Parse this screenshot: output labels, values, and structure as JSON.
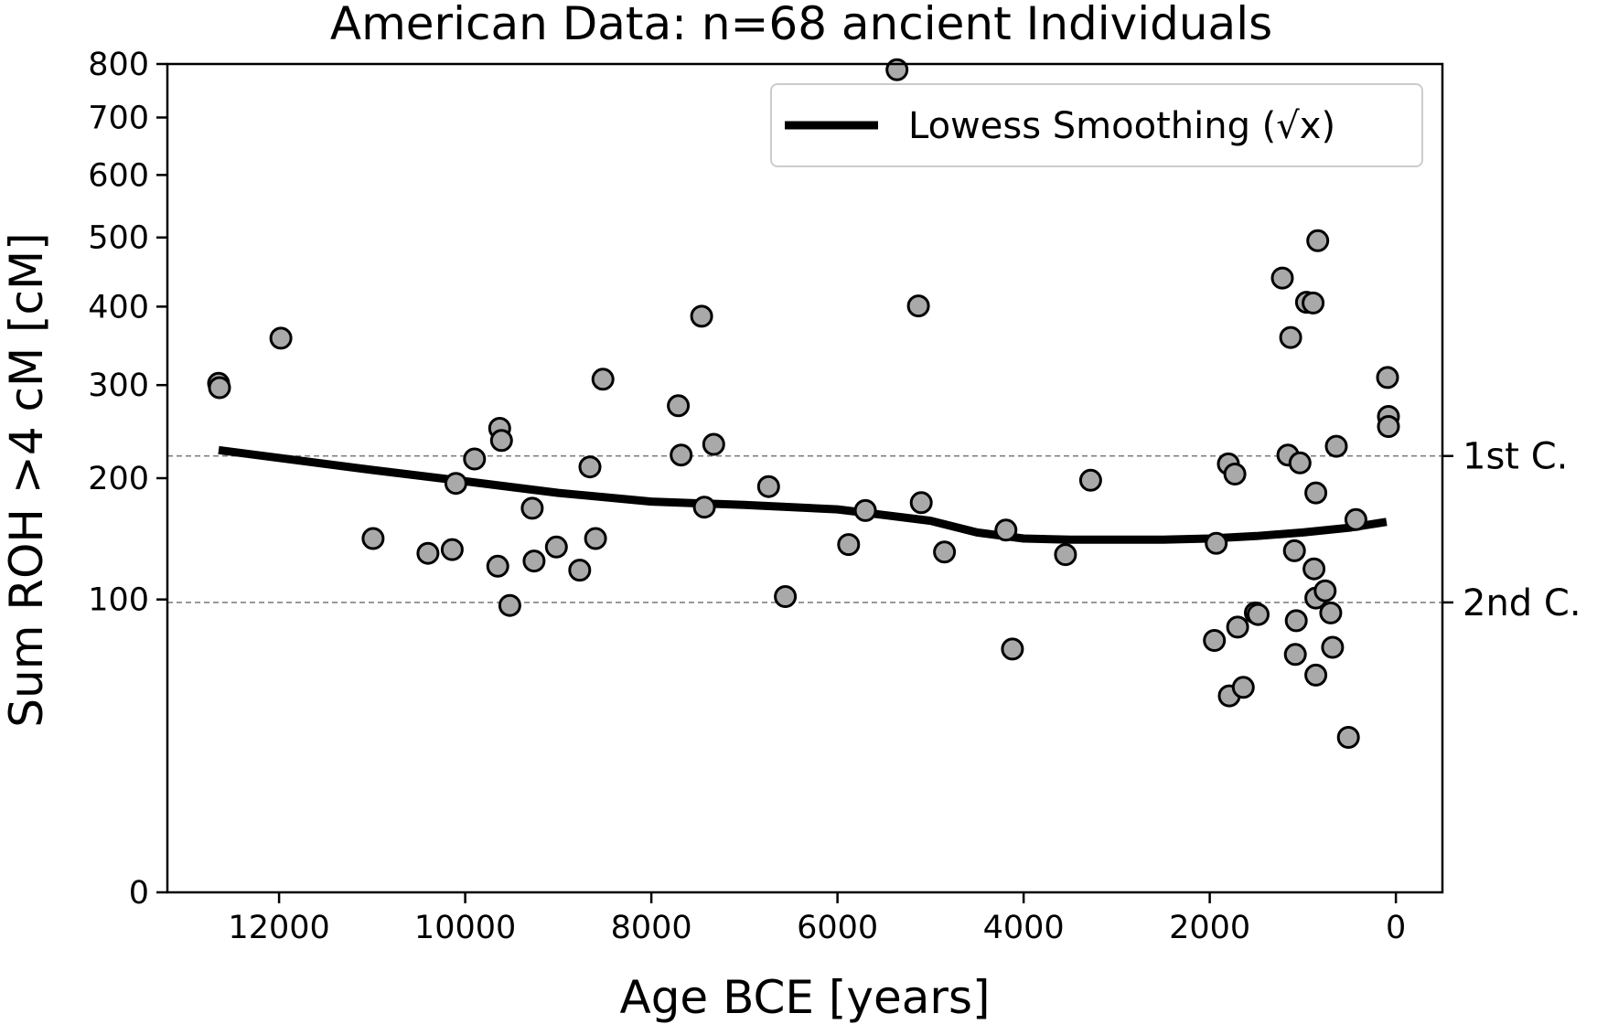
{
  "chart_data": {
    "type": "scatter",
    "title": "American Data: n=68 ancient Individuals",
    "xlabel": "Age BCE [years]",
    "ylabel": "Sum ROH >4 cM [cM]",
    "x_inverted": true,
    "xlim": [
      13200,
      -500
    ],
    "y_scale": "sqrt",
    "ylim": [
      0,
      800
    ],
    "x_ticks": [
      {
        "value": 12000,
        "label": "12000"
      },
      {
        "value": 10000,
        "label": "10000"
      },
      {
        "value": 8000,
        "label": "8000"
      },
      {
        "value": 6000,
        "label": "6000"
      },
      {
        "value": 4000,
        "label": "4000"
      },
      {
        "value": 2000,
        "label": "2000"
      },
      {
        "value": 0,
        "label": "0"
      }
    ],
    "y_ticks": [
      {
        "value": 0,
        "label": "0"
      },
      {
        "value": 100,
        "label": "100"
      },
      {
        "value": 200,
        "label": "200"
      },
      {
        "value": 300,
        "label": "300"
      },
      {
        "value": 400,
        "label": "400"
      },
      {
        "value": 500,
        "label": "500"
      },
      {
        "value": 600,
        "label": "600"
      },
      {
        "value": 700,
        "label": "700"
      },
      {
        "value": 800,
        "label": "800"
      }
    ],
    "reference_lines": [
      {
        "y": 222,
        "label": "1st C.",
        "style": "dashed",
        "color": "#808080"
      },
      {
        "y": 98,
        "label": "2nd C.",
        "style": "dashed",
        "color": "#808080"
      }
    ],
    "legend": {
      "position": "top-right",
      "entries": [
        {
          "label": "Lowess Smoothing (√x)",
          "color": "#000000"
        }
      ]
    },
    "colors": {
      "points_fill": "#a9a9a9",
      "points_edge": "#000000",
      "line": "#000000"
    },
    "series": [
      {
        "type": "scatter",
        "points": [
          [
            12650,
            302
          ],
          [
            12640,
            297
          ],
          [
            11980,
            358
          ],
          [
            10990,
            146
          ],
          [
            10400,
            134
          ],
          [
            10140,
            137
          ],
          [
            10100,
            195
          ],
          [
            9900,
            219
          ],
          [
            9650,
            124
          ],
          [
            9630,
            251
          ],
          [
            9610,
            238
          ],
          [
            9520,
            96
          ],
          [
            9280,
            172
          ],
          [
            9260,
            128
          ],
          [
            9020,
            139
          ],
          [
            8770,
            121
          ],
          [
            8660,
            211
          ],
          [
            8600,
            146
          ],
          [
            8520,
            307
          ],
          [
            7710,
            276
          ],
          [
            7680,
            223
          ],
          [
            7460,
            387
          ],
          [
            7430,
            173
          ],
          [
            7330,
            234
          ],
          [
            6740,
            192
          ],
          [
            6560,
            102
          ],
          [
            5880,
            141
          ],
          [
            5700,
            170
          ],
          [
            5360,
            789
          ],
          [
            5130,
            401
          ],
          [
            5100,
            177
          ],
          [
            4850,
            135
          ],
          [
            4190,
            153
          ],
          [
            4120,
            69
          ],
          [
            3550,
            133
          ],
          [
            3280,
            198
          ],
          [
            1950,
            74
          ],
          [
            1930,
            142
          ],
          [
            1800,
            214
          ],
          [
            1790,
            45
          ],
          [
            1730,
            204
          ],
          [
            1700,
            82
          ],
          [
            1640,
            49
          ],
          [
            1510,
            91
          ],
          [
            1480,
            90
          ],
          [
            1220,
            440
          ],
          [
            1160,
            223
          ],
          [
            1130,
            359
          ],
          [
            1090,
            136
          ],
          [
            1080,
            66
          ],
          [
            1070,
            86
          ],
          [
            1030,
            215
          ],
          [
            960,
            406
          ],
          [
            890,
            405
          ],
          [
            880,
            122
          ],
          [
            860,
            186
          ],
          [
            860,
            101
          ],
          [
            860,
            55
          ],
          [
            840,
            495
          ],
          [
            760,
            106
          ],
          [
            700,
            91
          ],
          [
            680,
            70
          ],
          [
            640,
            232
          ],
          [
            510,
            28
          ],
          [
            430,
            162
          ],
          [
            90,
            309
          ],
          [
            80,
            264
          ],
          [
            80,
            253
          ]
        ]
      },
      {
        "type": "line",
        "name": "Lowess Smoothing (√x)",
        "points": [
          [
            12650,
            228
          ],
          [
            11000,
            208
          ],
          [
            10000,
            197
          ],
          [
            9000,
            186
          ],
          [
            8000,
            178
          ],
          [
            7000,
            175
          ],
          [
            6000,
            171
          ],
          [
            5500,
            166
          ],
          [
            5000,
            161
          ],
          [
            4500,
            151
          ],
          [
            4000,
            146
          ],
          [
            3500,
            145
          ],
          [
            3000,
            145
          ],
          [
            2500,
            145
          ],
          [
            2000,
            146
          ],
          [
            1500,
            148
          ],
          [
            1000,
            151
          ],
          [
            500,
            155
          ],
          [
            100,
            160
          ]
        ]
      }
    ]
  }
}
